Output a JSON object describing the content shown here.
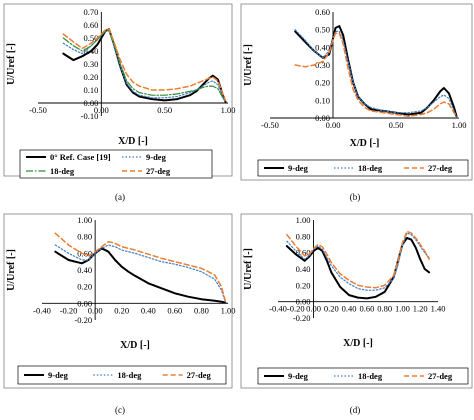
{
  "chart_data": [
    {
      "type": "line",
      "panel_label": "(a)",
      "xlabel": "X/D [-]",
      "ylabel": "U/Uref [-]",
      "xlim": [
        -0.5,
        1.0
      ],
      "ylim": [
        -0.1,
        0.7
      ],
      "x_ticks": [
        "-0.50",
        "0.00",
        "0.50",
        "1.00"
      ],
      "y_ticks": [
        "-0.10",
        "0.00",
        "0.10",
        "0.20",
        "0.30",
        "0.40",
        "0.50",
        "0.60",
        "0.70"
      ],
      "legend_placement": "bottom (boxed, 2 columns)",
      "grid": false,
      "series": [
        {
          "name": "0° Ref. Case [19]",
          "color": "#000000",
          "dash": "solid",
          "width": 2.0,
          "x": [
            -0.3,
            -0.22,
            -0.15,
            -0.08,
            -0.03,
            0.0,
            0.03,
            0.06,
            0.1,
            0.15,
            0.2,
            0.25,
            0.3,
            0.4,
            0.5,
            0.6,
            0.7,
            0.75,
            0.8,
            0.85,
            0.88,
            0.92,
            0.96,
            0.98
          ],
          "y": [
            0.38,
            0.33,
            0.36,
            0.4,
            0.45,
            0.5,
            0.55,
            0.57,
            0.45,
            0.28,
            0.14,
            0.08,
            0.05,
            0.03,
            0.02,
            0.03,
            0.06,
            0.09,
            0.14,
            0.19,
            0.21,
            0.18,
            0.06,
            0.01
          ]
        },
        {
          "name": "9-deg",
          "color": "#3d7fc9",
          "dash": "1.5,2",
          "width": 1.2,
          "x": [
            -0.3,
            -0.22,
            -0.15,
            -0.08,
            -0.03,
            0.0,
            0.03,
            0.06,
            0.1,
            0.15,
            0.2,
            0.25,
            0.3,
            0.4,
            0.5,
            0.6,
            0.7,
            0.75,
            0.8,
            0.85,
            0.88,
            0.92,
            0.96,
            0.98
          ],
          "y": [
            0.46,
            0.41,
            0.38,
            0.44,
            0.49,
            0.52,
            0.55,
            0.56,
            0.44,
            0.28,
            0.15,
            0.09,
            0.06,
            0.04,
            0.04,
            0.05,
            0.08,
            0.1,
            0.13,
            0.16,
            0.17,
            0.14,
            0.05,
            0.01
          ]
        },
        {
          "name": "18-deg",
          "color": "#2e8b3a",
          "dash": "7,2,1.5,2",
          "width": 1.2,
          "x": [
            -0.3,
            -0.22,
            -0.15,
            -0.08,
            -0.03,
            0.0,
            0.03,
            0.06,
            0.1,
            0.15,
            0.2,
            0.25,
            0.3,
            0.4,
            0.5,
            0.6,
            0.7,
            0.75,
            0.8,
            0.85,
            0.88,
            0.92,
            0.96,
            0.98
          ],
          "y": [
            0.5,
            0.44,
            0.4,
            0.44,
            0.49,
            0.52,
            0.55,
            0.56,
            0.45,
            0.3,
            0.17,
            0.11,
            0.08,
            0.06,
            0.06,
            0.07,
            0.09,
            0.1,
            0.12,
            0.13,
            0.13,
            0.11,
            0.04,
            0.01
          ]
        },
        {
          "name": "27-deg",
          "color": "#ed7d31",
          "dash": "5,3",
          "width": 1.5,
          "x": [
            -0.3,
            -0.22,
            -0.15,
            -0.08,
            -0.03,
            0.0,
            0.03,
            0.06,
            0.1,
            0.15,
            0.2,
            0.25,
            0.3,
            0.4,
            0.5,
            0.6,
            0.7,
            0.75,
            0.8,
            0.85,
            0.88,
            0.92,
            0.96,
            0.98
          ],
          "y": [
            0.53,
            0.47,
            0.42,
            0.46,
            0.5,
            0.53,
            0.56,
            0.57,
            0.47,
            0.33,
            0.22,
            0.16,
            0.13,
            0.1,
            0.1,
            0.11,
            0.13,
            0.15,
            0.17,
            0.19,
            0.2,
            0.17,
            0.07,
            0.02
          ]
        }
      ]
    },
    {
      "type": "line",
      "panel_label": "(b)",
      "xlabel": "X/D [-]",
      "ylabel": "U/Uref [-]",
      "xlim": [
        -0.5,
        1.0
      ],
      "ylim": [
        0.0,
        0.6
      ],
      "x_ticks": [
        "-0.50",
        "0.00",
        "0.50",
        "1.00"
      ],
      "y_ticks": [
        "0.00",
        "0.10",
        "0.20",
        "0.30",
        "0.40",
        "0.50",
        "0.60"
      ],
      "legend_placement": "bottom (boxed, 1 row)",
      "grid": false,
      "series": [
        {
          "name": "9-deg",
          "color": "#000000",
          "dash": "solid",
          "width": 2.0,
          "x": [
            -0.3,
            -0.22,
            -0.15,
            -0.08,
            -0.03,
            0.0,
            0.02,
            0.05,
            0.08,
            0.12,
            0.16,
            0.2,
            0.25,
            0.3,
            0.4,
            0.5,
            0.6,
            0.7,
            0.75,
            0.8,
            0.85,
            0.88,
            0.92,
            0.96,
            0.98
          ],
          "y": [
            0.49,
            0.43,
            0.38,
            0.34,
            0.36,
            0.45,
            0.51,
            0.52,
            0.47,
            0.33,
            0.2,
            0.12,
            0.08,
            0.05,
            0.04,
            0.03,
            0.02,
            0.03,
            0.06,
            0.1,
            0.15,
            0.17,
            0.14,
            0.06,
            0.01
          ]
        },
        {
          "name": "18-deg",
          "color": "#3d7fc9",
          "dash": "1.5,2",
          "width": 1.2,
          "x": [
            -0.3,
            -0.22,
            -0.15,
            -0.08,
            -0.03,
            0.0,
            0.02,
            0.05,
            0.08,
            0.12,
            0.16,
            0.2,
            0.25,
            0.3,
            0.4,
            0.5,
            0.6,
            0.7,
            0.75,
            0.8,
            0.85,
            0.88,
            0.92,
            0.96,
            0.98
          ],
          "y": [
            0.5,
            0.44,
            0.38,
            0.34,
            0.38,
            0.45,
            0.49,
            0.49,
            0.44,
            0.32,
            0.2,
            0.12,
            0.08,
            0.06,
            0.04,
            0.03,
            0.03,
            0.04,
            0.06,
            0.09,
            0.12,
            0.13,
            0.11,
            0.04,
            0.01
          ]
        },
        {
          "name": "27-deg",
          "color": "#ed7d31",
          "dash": "5,3",
          "width": 1.5,
          "x": [
            -0.3,
            -0.22,
            -0.15,
            -0.08,
            -0.03,
            0.0,
            0.02,
            0.05,
            0.08,
            0.12,
            0.16,
            0.2,
            0.25,
            0.3,
            0.4,
            0.5,
            0.6,
            0.7,
            0.75,
            0.8,
            0.85,
            0.88,
            0.92,
            0.96,
            0.98
          ],
          "y": [
            0.3,
            0.29,
            0.3,
            0.32,
            0.37,
            0.44,
            0.48,
            0.48,
            0.42,
            0.28,
            0.16,
            0.1,
            0.06,
            0.04,
            0.03,
            0.02,
            0.01,
            0.02,
            0.03,
            0.05,
            0.08,
            0.09,
            0.08,
            0.03,
            0.01
          ]
        }
      ]
    },
    {
      "type": "line",
      "panel_label": "(c)",
      "xlabel": "X/D [-]",
      "ylabel": "U/Uref [-]",
      "xlim": [
        -0.4,
        1.0
      ],
      "ylim": [
        -0.2,
        1.0
      ],
      "x_ticks": [
        "-0.40",
        "-0.20",
        "0.00",
        "0.20",
        "0.40",
        "0.60",
        "0.80",
        "1.00"
      ],
      "y_ticks": [
        "-0.20",
        "0.00",
        "0.20",
        "0.40",
        "0.60",
        "0.80",
        "1.00"
      ],
      "legend_placement": "bottom (boxed, 1 row)",
      "grid": false,
      "series": [
        {
          "name": "9-deg",
          "color": "#000000",
          "dash": "solid",
          "width": 2.0,
          "x": [
            -0.3,
            -0.2,
            -0.1,
            -0.05,
            0.0,
            0.05,
            0.1,
            0.15,
            0.2,
            0.25,
            0.3,
            0.4,
            0.5,
            0.6,
            0.7,
            0.8,
            0.9,
            0.95,
            0.98
          ],
          "y": [
            0.62,
            0.52,
            0.48,
            0.52,
            0.6,
            0.66,
            0.62,
            0.52,
            0.44,
            0.38,
            0.33,
            0.24,
            0.18,
            0.12,
            0.08,
            0.05,
            0.03,
            0.02,
            0.01
          ]
        },
        {
          "name": "18-deg",
          "color": "#3d7fc9",
          "dash": "1.5,2",
          "width": 1.2,
          "x": [
            -0.3,
            -0.2,
            -0.1,
            -0.05,
            0.0,
            0.05,
            0.1,
            0.15,
            0.2,
            0.3,
            0.4,
            0.5,
            0.6,
            0.7,
            0.8,
            0.9,
            0.95,
            0.98
          ],
          "y": [
            0.7,
            0.6,
            0.52,
            0.52,
            0.6,
            0.66,
            0.7,
            0.68,
            0.64,
            0.6,
            0.55,
            0.5,
            0.47,
            0.43,
            0.38,
            0.29,
            0.16,
            0.02
          ]
        },
        {
          "name": "27-deg",
          "color": "#ed7d31",
          "dash": "5,3",
          "width": 1.5,
          "x": [
            -0.3,
            -0.2,
            -0.1,
            -0.05,
            0.0,
            0.05,
            0.1,
            0.15,
            0.2,
            0.3,
            0.4,
            0.5,
            0.6,
            0.7,
            0.8,
            0.9,
            0.95,
            0.98
          ],
          "y": [
            0.84,
            0.7,
            0.6,
            0.57,
            0.62,
            0.68,
            0.74,
            0.72,
            0.68,
            0.64,
            0.59,
            0.54,
            0.5,
            0.46,
            0.42,
            0.34,
            0.2,
            0.03
          ]
        }
      ]
    },
    {
      "type": "line",
      "panel_label": "(d)",
      "xlabel": "X/D [-]",
      "ylabel": "U/Uref [-]",
      "xlim": [
        -0.4,
        1.4
      ],
      "ylim": [
        -0.2,
        1.0
      ],
      "x_ticks": [
        "-0.40",
        "-0.20",
        "0.00",
        "0.20",
        "0.40",
        "0.60",
        "0.80",
        "1.00",
        "1.20",
        "1.40"
      ],
      "y_ticks": [
        "-0.20",
        "0.00",
        "0.20",
        "0.40",
        "0.60",
        "0.80",
        "1.00"
      ],
      "legend_placement": "bottom (boxed, 1 row)",
      "grid": false,
      "series": [
        {
          "name": "9-deg",
          "color": "#000000",
          "dash": "solid",
          "width": 2.0,
          "x": [
            -0.3,
            -0.2,
            -0.1,
            -0.05,
            0.0,
            0.05,
            0.1,
            0.15,
            0.2,
            0.3,
            0.4,
            0.5,
            0.6,
            0.7,
            0.8,
            0.9,
            0.95,
            1.0,
            1.05,
            1.1,
            1.15,
            1.2,
            1.25,
            1.3
          ],
          "y": [
            0.68,
            0.58,
            0.5,
            0.55,
            0.62,
            0.66,
            0.62,
            0.5,
            0.36,
            0.18,
            0.08,
            0.05,
            0.04,
            0.06,
            0.12,
            0.3,
            0.5,
            0.7,
            0.78,
            0.76,
            0.66,
            0.52,
            0.4,
            0.36
          ]
        },
        {
          "name": "18-deg",
          "color": "#3d7fc9",
          "dash": "1.5,2",
          "width": 1.2,
          "x": [
            -0.3,
            -0.2,
            -0.1,
            -0.05,
            0.0,
            0.05,
            0.1,
            0.15,
            0.2,
            0.3,
            0.4,
            0.5,
            0.6,
            0.7,
            0.8,
            0.9,
            0.95,
            1.0,
            1.05,
            1.1,
            1.15,
            1.2,
            1.25,
            1.3
          ],
          "y": [
            0.74,
            0.62,
            0.52,
            0.56,
            0.64,
            0.68,
            0.64,
            0.54,
            0.44,
            0.3,
            0.22,
            0.16,
            0.14,
            0.14,
            0.17,
            0.28,
            0.45,
            0.68,
            0.84,
            0.82,
            0.76,
            0.68,
            0.6,
            0.54
          ]
        },
        {
          "name": "27-deg",
          "color": "#ed7d31",
          "dash": "5,3",
          "width": 1.5,
          "x": [
            -0.3,
            -0.2,
            -0.1,
            -0.05,
            0.0,
            0.05,
            0.1,
            0.15,
            0.2,
            0.3,
            0.4,
            0.5,
            0.6,
            0.7,
            0.8,
            0.9,
            0.95,
            1.0,
            1.05,
            1.1,
            1.15,
            1.2,
            1.25,
            1.3
          ],
          "y": [
            0.82,
            0.68,
            0.56,
            0.58,
            0.65,
            0.7,
            0.67,
            0.58,
            0.48,
            0.34,
            0.26,
            0.2,
            0.18,
            0.17,
            0.2,
            0.32,
            0.5,
            0.72,
            0.86,
            0.84,
            0.78,
            0.7,
            0.62,
            0.52
          ]
        }
      ]
    }
  ]
}
